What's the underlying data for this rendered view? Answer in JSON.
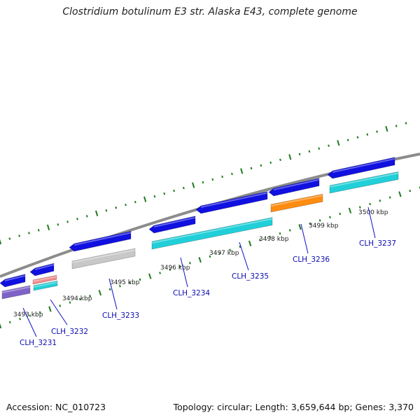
{
  "title": "Clostridium botulinum E3 str. Alaska E43, complete genome",
  "footer": {
    "accession": "Accession: NC_010723",
    "summary": "Topology: circular; Length: 3,659,644 bp; Genes: 3,370"
  },
  "colors": {
    "backbone": "#8c8c8c",
    "ticks": "#1e7a1e",
    "strand_forward": "#1010e0",
    "cds_cyan": "#20cfd8",
    "cds_gray": "#c8c8c8",
    "cds_orange": "#ff8c10",
    "cds_purple": "#7f62c8",
    "cds_pink": "#f08a8a",
    "gene_label": "#0b0bb0"
  },
  "kbp_labels": [
    "3493 kbp",
    "3494 kbp",
    "3495 kbp",
    "3496 kbp",
    "3497 kbp",
    "3498 kbp",
    "3499 kbp",
    "3500 kbp"
  ],
  "genes": [
    "CLH_3231",
    "CLH_3232",
    "CLH_3233",
    "CLH_3234",
    "CLH_3235",
    "CLH_3236",
    "CLH_3237"
  ]
}
